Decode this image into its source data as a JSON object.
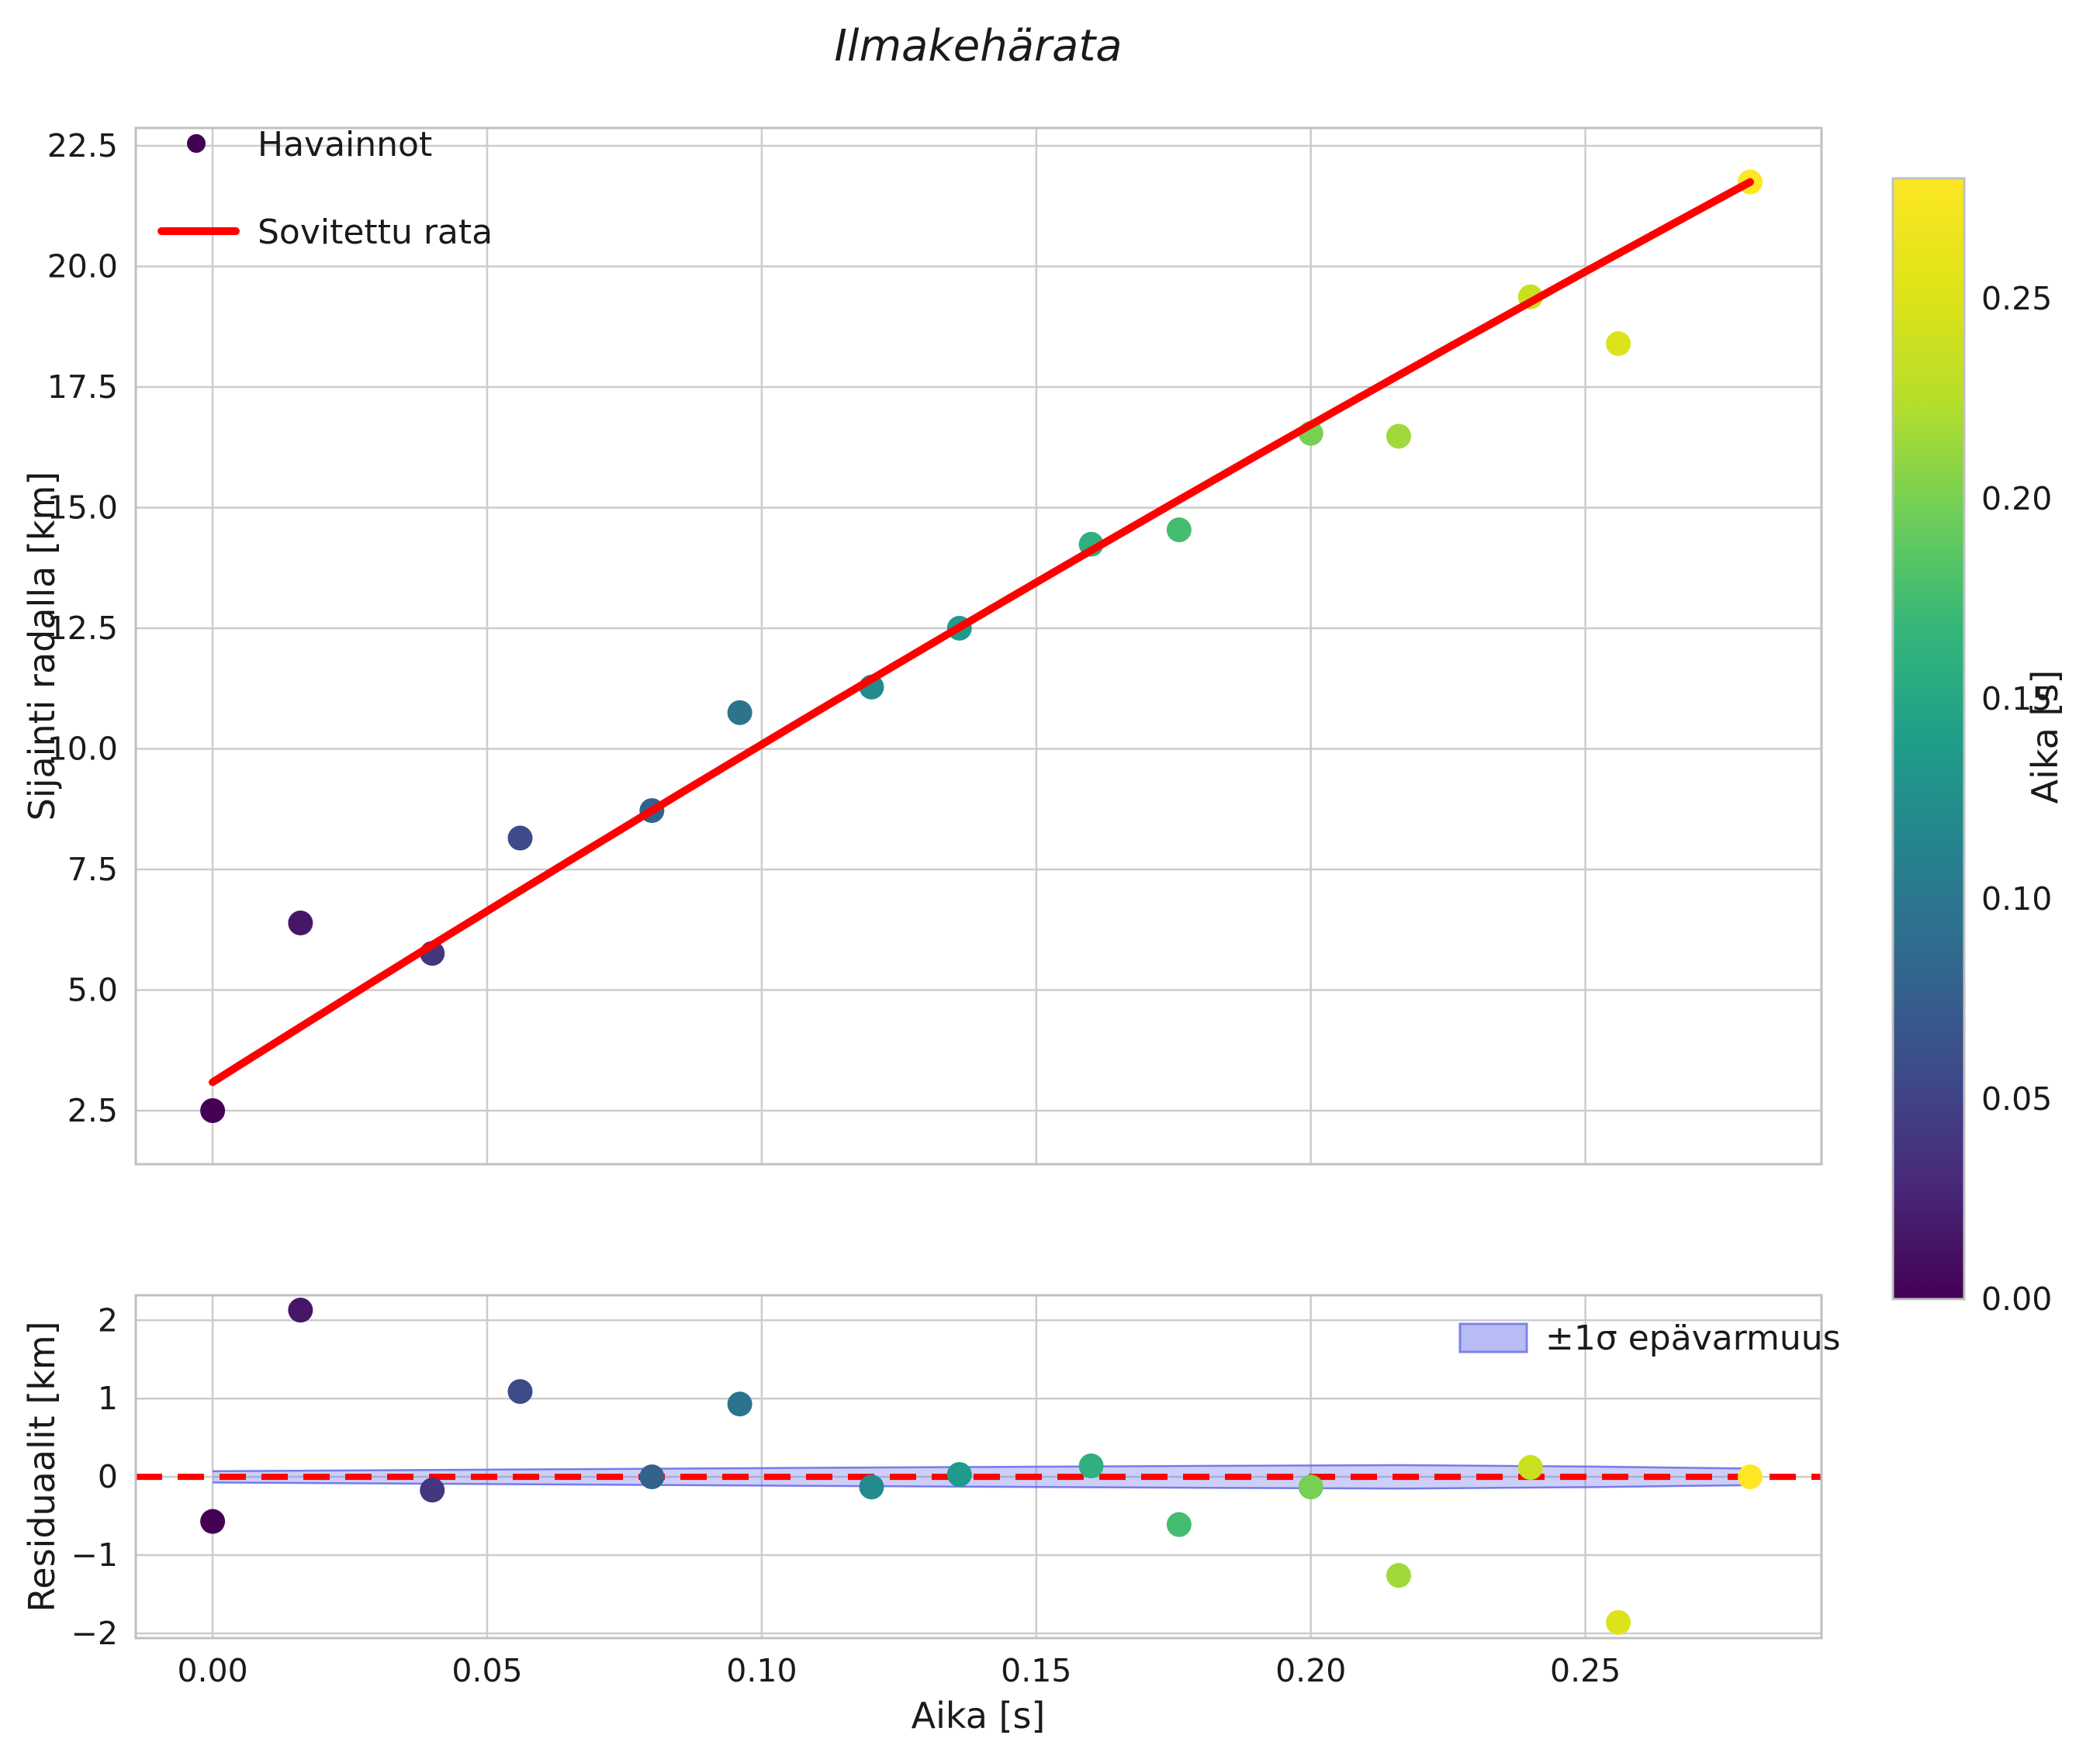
{
  "title": "Ilmakehärata",
  "top_plot": {
    "ylabel": "Sijainti radalla [km]",
    "legend_observations": "Havainnot",
    "legend_fit": "Sovitettu rata",
    "ytick_labels": [
      "2.5",
      "5.0",
      "7.5",
      "10.0",
      "12.5",
      "15.0",
      "17.5",
      "20.0",
      "22.5"
    ],
    "ytick_values": [
      2.5,
      5.0,
      7.5,
      10.0,
      12.5,
      15.0,
      17.5,
      20.0,
      22.5
    ],
    "xlim": [
      -0.014,
      0.293
    ],
    "ylim": [
      1.39,
      22.87
    ]
  },
  "bottom_plot": {
    "ylabel": "Residuaalit [km]",
    "xlabel": "Aika [s]",
    "legend_band": "±1σ epävarmuus",
    "ytick_labels": [
      "−2",
      "−1",
      "0",
      "1",
      "2"
    ],
    "ytick_values": [
      -2,
      -1,
      0,
      1,
      2
    ],
    "xtick_labels": [
      "0.00",
      "0.05",
      "0.10",
      "0.15",
      "0.20",
      "0.25"
    ],
    "xtick_values": [
      0.0,
      0.05,
      0.1,
      0.15,
      0.2,
      0.25
    ],
    "xlim": [
      -0.014,
      0.293
    ],
    "ylim": [
      -2.06,
      2.32
    ]
  },
  "colorbar": {
    "label": "Aika [s]",
    "tick_labels": [
      "0.00",
      "0.05",
      "0.10",
      "0.15",
      "0.20",
      "0.25"
    ],
    "tick_values": [
      0.0,
      0.05,
      0.1,
      0.15,
      0.2,
      0.25
    ],
    "vmin": 0.0,
    "vmax": 0.28,
    "stops": [
      [
        0,
        "#440154"
      ],
      [
        0.1,
        "#482878"
      ],
      [
        0.2,
        "#3e4a89"
      ],
      [
        0.3,
        "#31688e"
      ],
      [
        0.4,
        "#26828e"
      ],
      [
        0.5,
        "#1f9e89"
      ],
      [
        0.6,
        "#35b779"
      ],
      [
        0.7,
        "#6ece58"
      ],
      [
        0.8,
        "#b5de2b"
      ],
      [
        0.9,
        "#dfe318"
      ],
      [
        1,
        "#fde725"
      ]
    ]
  },
  "chart_data": {
    "type": "scatter",
    "x_series_name": "Aika [s]",
    "x": [
      0.0,
      0.016,
      0.04,
      0.056,
      0.08,
      0.096,
      0.12,
      0.136,
      0.16,
      0.176,
      0.2,
      0.216,
      0.24,
      0.256,
      0.28
    ],
    "observations_km": [
      2.5,
      6.39,
      5.76,
      8.15,
      8.72,
      10.75,
      11.28,
      12.5,
      14.24,
      14.54,
      16.54,
      16.48,
      19.37,
      18.4,
      21.75
    ],
    "residuals_km": [
      -0.57,
      2.13,
      -0.17,
      1.09,
      0.0,
      0.93,
      -0.13,
      0.03,
      0.14,
      -0.61,
      -0.13,
      -1.26,
      0.12,
      -1.86,
      0.0
    ],
    "point_colors": [
      "#440154",
      "#461769",
      "#44367f",
      "#3e4a89",
      "#33638d",
      "#2c738e",
      "#248a8d",
      "#209a8a",
      "#2fb07e",
      "#45bd70",
      "#77cf53",
      "#a0d939",
      "#c9e021",
      "#dde31b",
      "#fde725"
    ],
    "fit_curve": {
      "a": 3.09,
      "b": 71.86,
      "c": -18.64,
      "t_start": 0.0,
      "t_end": 0.28
    },
    "zero_line": 0.0,
    "band_halfwidth_anchors": [
      [
        0.0,
        0.072
      ],
      [
        0.05,
        0.092
      ],
      [
        0.1,
        0.112
      ],
      [
        0.14,
        0.126
      ],
      [
        0.18,
        0.14
      ],
      [
        0.216,
        0.15
      ],
      [
        0.25,
        0.132
      ],
      [
        0.28,
        0.106
      ]
    ],
    "grid": true,
    "legend_position_top": "upper left",
    "legend_position_bottom": "upper right"
  },
  "style": {
    "fit_color": "#ff0000",
    "band_fill": "rgba(104,110,238,0.33)",
    "band_edge": "rgba(98,104,232,0.85)",
    "legend_patch_fill": "#b7bcf5",
    "legend_patch_edge": "#7b82ea",
    "grid_color": "#cccccc",
    "spine_color": "#c0c0c0",
    "obs_legend_dot": "#440154"
  }
}
